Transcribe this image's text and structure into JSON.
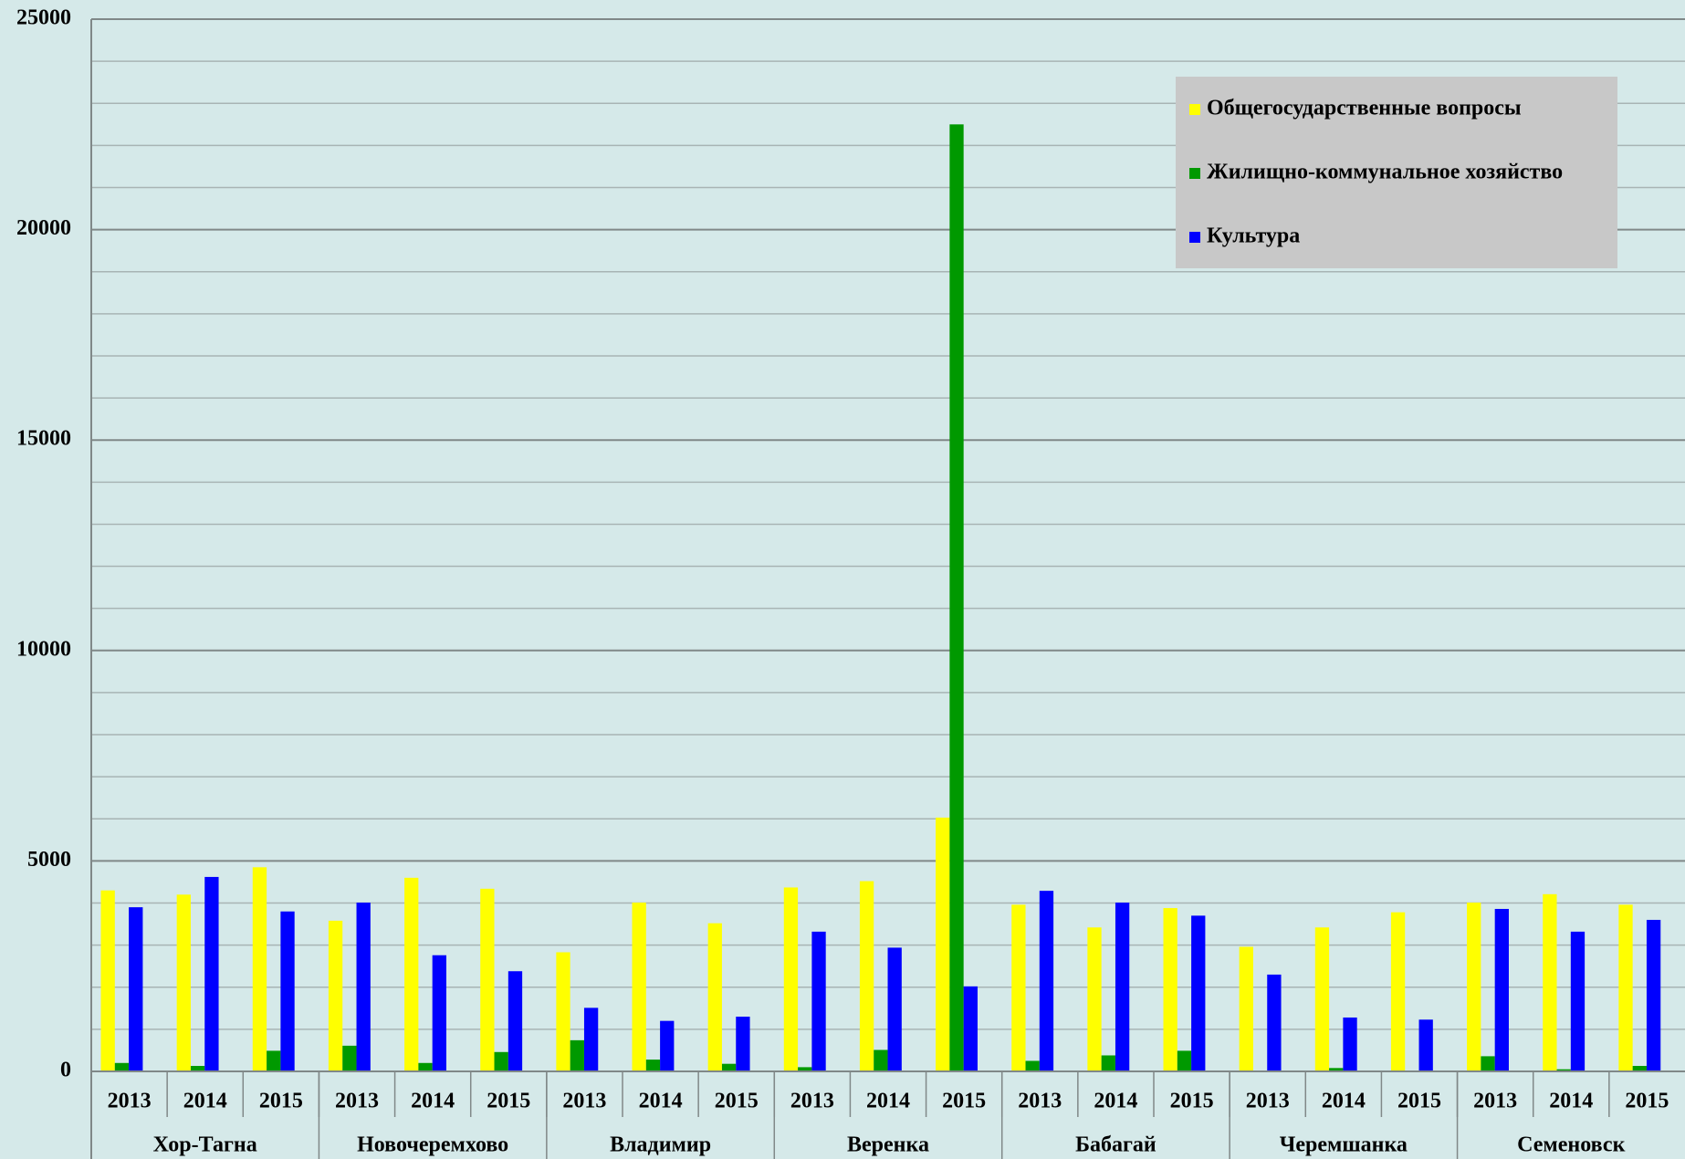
{
  "chart_data": {
    "type": "bar",
    "categories": [
      "2013",
      "2014",
      "2015",
      "2013",
      "2014",
      "2015",
      "2013",
      "2014",
      "2015",
      "2013",
      "2014",
      "2015",
      "2013",
      "2014",
      "2015",
      "2013",
      "2014",
      "2015",
      "2013",
      "2014",
      "2015"
    ],
    "category_groups": [
      "Хор-Тагна",
      "Новочеремхово",
      "Владимир",
      "Веренка",
      "Бабагай",
      "Черемшанка",
      "Семеновск"
    ],
    "series": [
      {
        "name": "Общегосударственные вопросы",
        "color": "#ffff00",
        "values": [
          4300,
          4200,
          4850,
          3580,
          4600,
          4340,
          2830,
          4010,
          3520,
          4370,
          4520,
          6030,
          3960,
          3420,
          3880,
          2960,
          3420,
          3780,
          4010,
          4210,
          3960
        ]
      },
      {
        "name": "Жилищно-коммунальное хозяйство",
        "color": "#009900",
        "values": [
          200,
          130,
          490,
          610,
          200,
          460,
          740,
          280,
          180,
          100,
          510,
          22500,
          250,
          380,
          490,
          20,
          80,
          20,
          360,
          50,
          130
        ]
      },
      {
        "name": "Культура",
        "color": "#0000ff",
        "values": [
          3900,
          4620,
          3800,
          4010,
          2760,
          2380,
          1510,
          1200,
          1300,
          3320,
          2940,
          2020,
          4290,
          4010,
          3700,
          2300,
          1280,
          1230,
          3860,
          3320,
          3600
        ]
      }
    ],
    "ylim": [
      0,
      25000
    ],
    "yticks": [
      0,
      5000,
      10000,
      15000,
      20000,
      25000
    ],
    "yminorticks": [
      1000,
      2000,
      3000,
      4000,
      6000,
      7000,
      8000,
      9000,
      11000,
      12000,
      13000,
      14000,
      16000,
      17000,
      18000,
      19000,
      21000,
      22000,
      23000,
      24000
    ],
    "grid": true,
    "legend": "top-right"
  }
}
